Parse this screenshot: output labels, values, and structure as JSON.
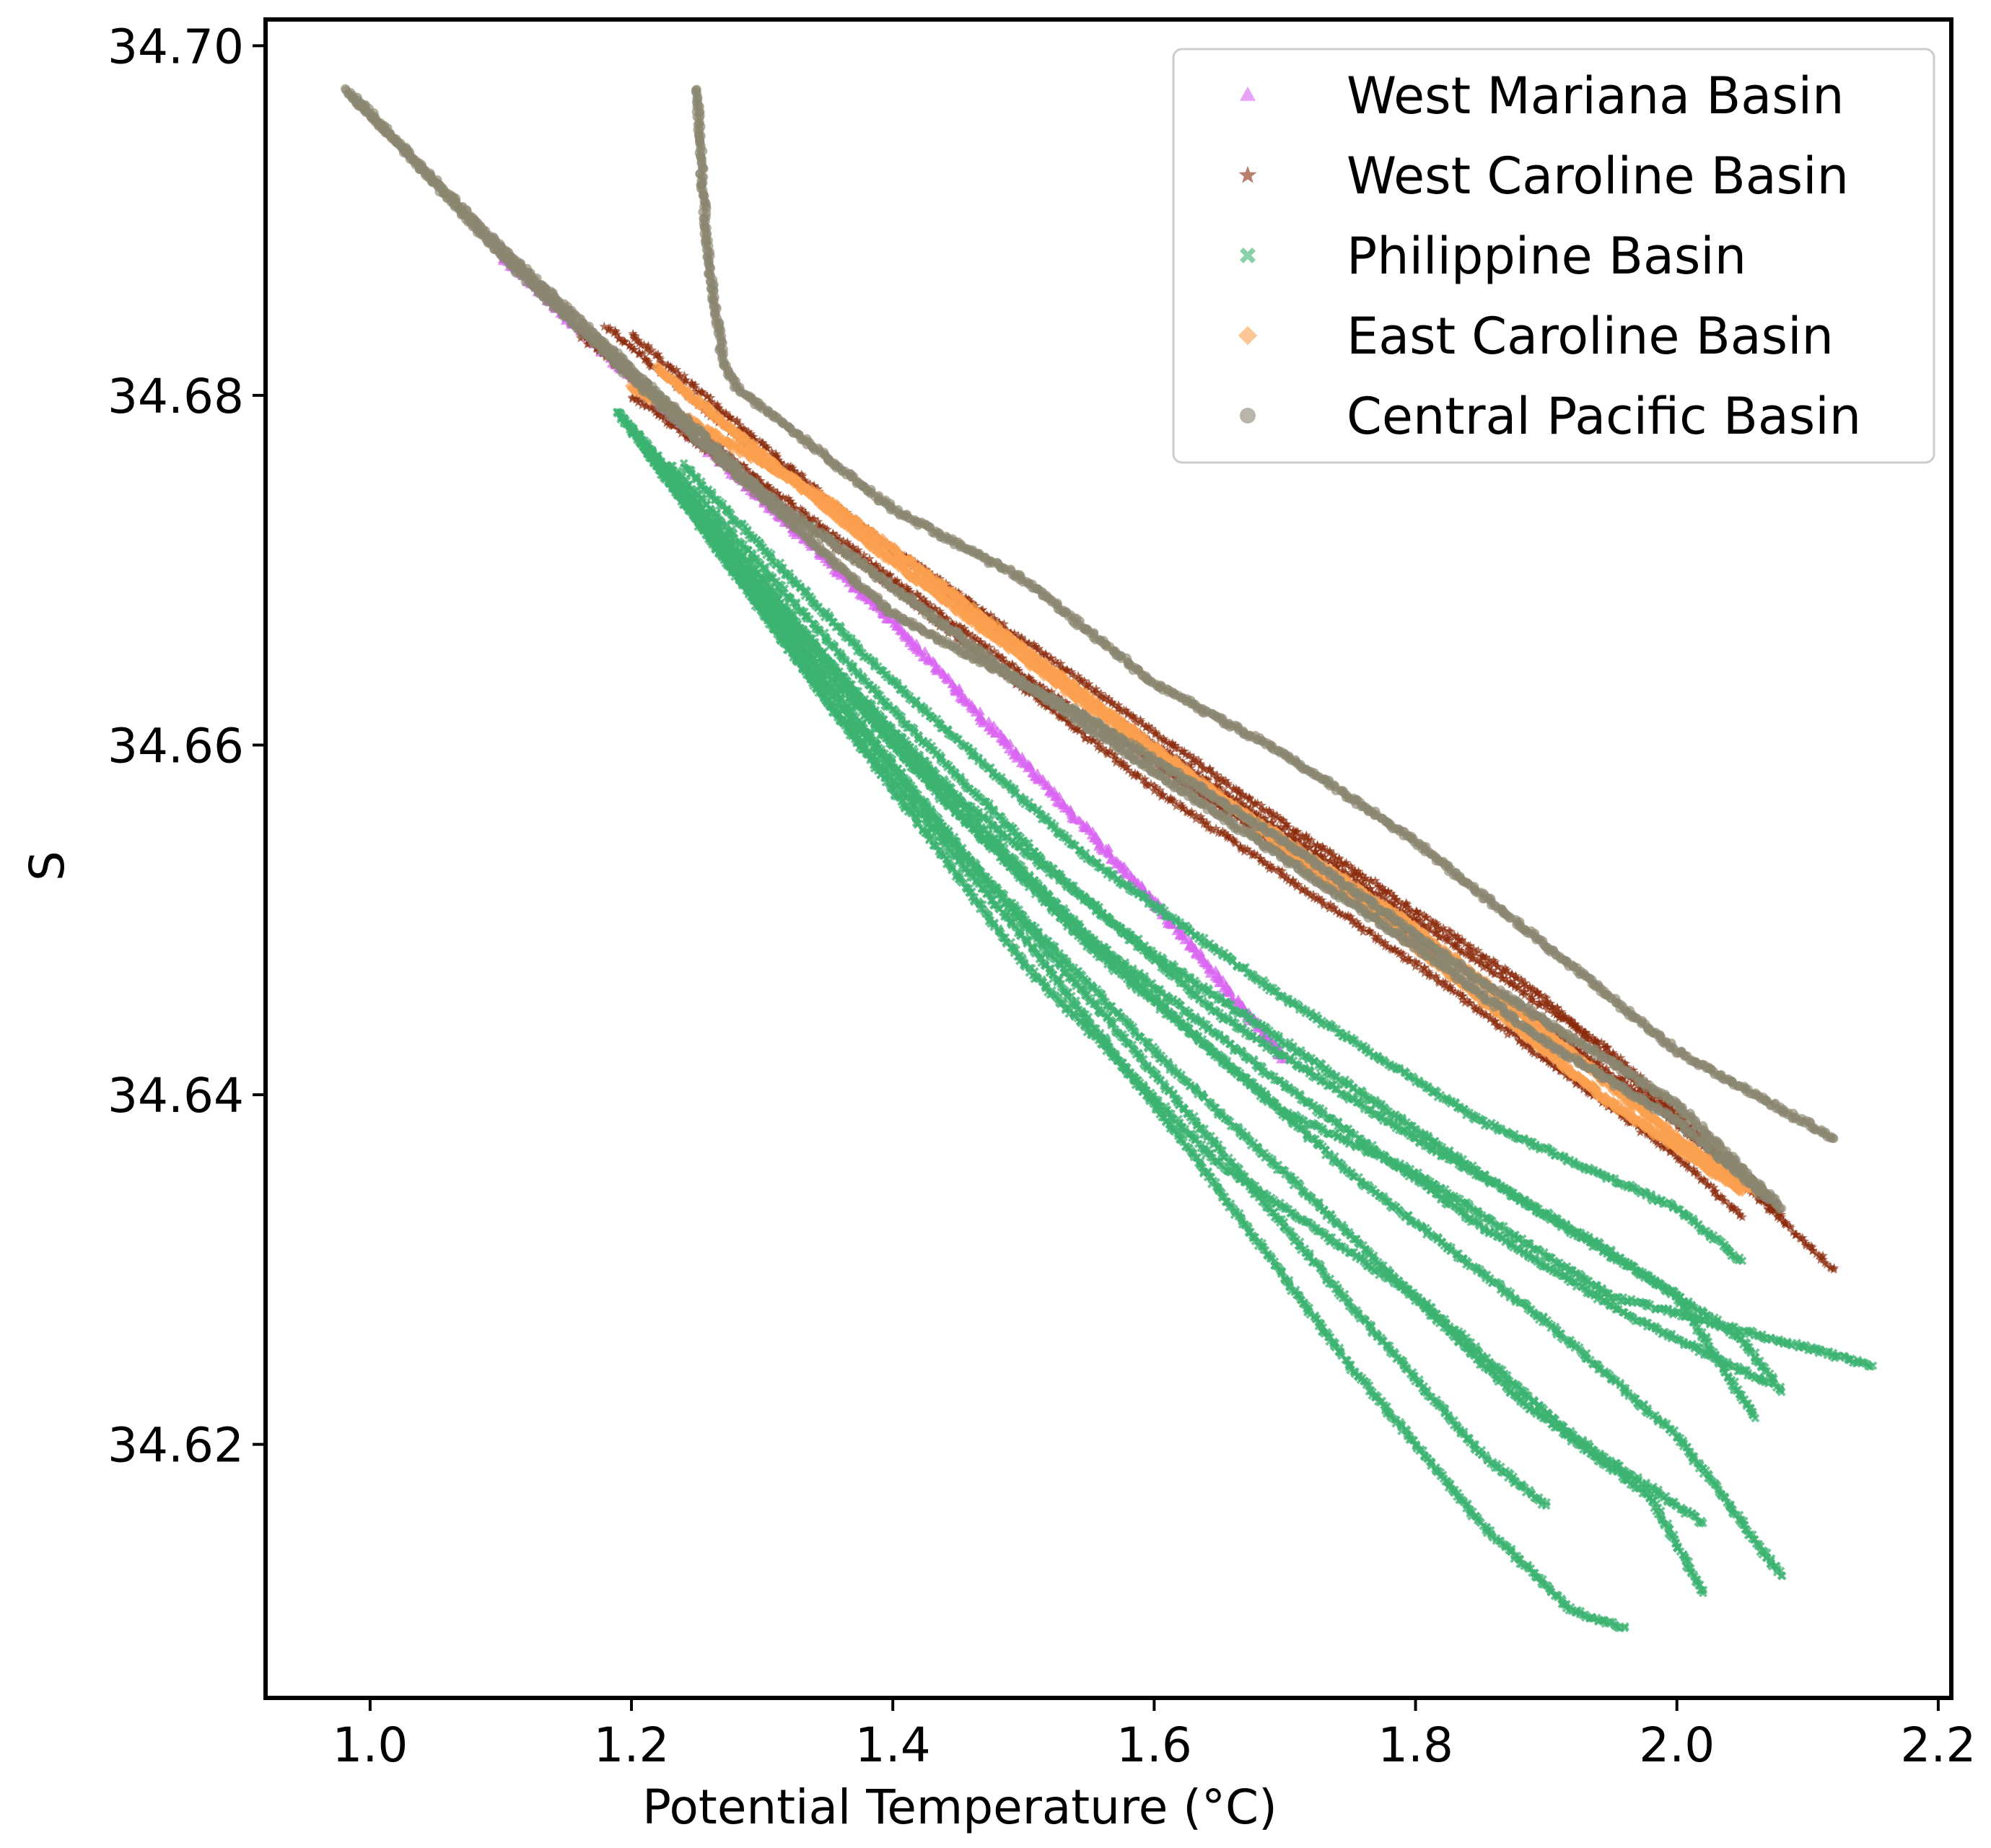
{
  "chart_data": {
    "type": "scatter",
    "title": "",
    "xlabel": "Potential Temperature (°C)",
    "ylabel": "S",
    "xlim": [
      0.92,
      2.21
    ],
    "ylim": [
      34.6055,
      34.7015
    ],
    "x_ticks": [
      1.0,
      1.2,
      1.4,
      1.6,
      1.8,
      2.0,
      2.2
    ],
    "x_tick_labels": [
      "1.0",
      "1.2",
      "1.4",
      "1.6",
      "1.8",
      "2.0",
      "2.2"
    ],
    "y_ticks": [
      34.62,
      34.64,
      34.66,
      34.68,
      34.7
    ],
    "y_tick_labels": [
      "34.62",
      "34.64",
      "34.66",
      "34.68",
      "34.70"
    ],
    "grid": false,
    "legend_position": "top-right",
    "series": [
      {
        "name": "West Mariana Basin",
        "marker": "triangle",
        "color": "#d966f2",
        "profiles": [
          [
            [
              1.1,
              34.688
            ],
            [
              1.2,
              34.681
            ],
            [
              1.3,
              34.674
            ],
            [
              1.4,
              34.667
            ],
            [
              1.5,
              34.659
            ],
            [
              1.6,
              34.651
            ],
            [
              1.7,
              34.642
            ]
          ]
        ]
      },
      {
        "name": "West Caroline Basin",
        "marker": "star",
        "color": "#8b2a0a",
        "profiles": [
          [
            [
              1.16,
              34.6835
            ],
            [
              1.3,
              34.675
            ],
            [
              1.5,
              34.664
            ],
            [
              1.7,
              34.654
            ],
            [
              1.9,
              34.644
            ],
            [
              2.05,
              34.6355
            ]
          ],
          [
            [
              1.18,
              34.684
            ],
            [
              1.3,
              34.6765
            ],
            [
              1.5,
              34.666
            ],
            [
              1.7,
              34.6555
            ],
            [
              1.9,
              34.6455
            ],
            [
              2.12,
              34.63
            ]
          ],
          [
            [
              1.2,
              34.6835
            ],
            [
              1.35,
              34.674
            ],
            [
              1.55,
              34.6625
            ],
            [
              1.75,
              34.6525
            ],
            [
              1.95,
              34.6425
            ],
            [
              2.08,
              34.633
            ]
          ],
          [
            [
              1.2,
              34.68
            ],
            [
              1.4,
              34.669
            ],
            [
              1.6,
              34.6575
            ],
            [
              1.8,
              34.6475
            ],
            [
              2.0,
              34.6365
            ],
            [
              2.05,
              34.633
            ]
          ]
        ]
      },
      {
        "name": "Philippine Basin",
        "marker": "x",
        "color": "#3cb371",
        "profiles": [
          [
            [
              1.19,
              34.679
            ],
            [
              1.3,
              34.6695
            ],
            [
              1.4,
              34.66
            ],
            [
              1.55,
              34.6485
            ],
            [
              1.7,
              34.639
            ],
            [
              1.8,
              34.6355
            ],
            [
              1.95,
              34.6285
            ],
            [
              2.15,
              34.6245
            ]
          ],
          [
            [
              1.19,
              34.679
            ],
            [
              1.3,
              34.669
            ],
            [
              1.42,
              34.659
            ],
            [
              1.55,
              34.649
            ],
            [
              1.7,
              34.6405
            ],
            [
              1.85,
              34.6325
            ],
            [
              1.96,
              34.6275
            ],
            [
              2.07,
              34.6235
            ]
          ],
          [
            [
              1.2,
              34.678
            ],
            [
              1.32,
              34.667
            ],
            [
              1.45,
              34.657
            ],
            [
              1.6,
              34.648
            ],
            [
              1.75,
              34.6405
            ],
            [
              1.88,
              34.634
            ],
            [
              2.0,
              34.6285
            ],
            [
              2.06,
              34.6215
            ]
          ],
          [
            [
              1.2,
              34.678
            ],
            [
              1.32,
              34.6665
            ],
            [
              1.45,
              34.656
            ],
            [
              1.6,
              34.6455
            ],
            [
              1.75,
              34.6355
            ],
            [
              1.9,
              34.627
            ],
            [
              2.0,
              34.6205
            ],
            [
              2.08,
              34.6125
            ]
          ],
          [
            [
              1.21,
              34.677
            ],
            [
              1.33,
              34.665
            ],
            [
              1.45,
              34.654
            ],
            [
              1.6,
              34.6425
            ],
            [
              1.75,
              34.632
            ],
            [
              1.88,
              34.6225
            ],
            [
              1.98,
              34.617
            ],
            [
              2.02,
              34.6115
            ]
          ],
          [
            [
              1.21,
              34.677
            ],
            [
              1.34,
              34.6645
            ],
            [
              1.48,
              34.6515
            ],
            [
              1.62,
              34.6395
            ],
            [
              1.75,
              34.628
            ],
            [
              1.85,
              34.6195
            ],
            [
              1.9,
              34.6165
            ]
          ],
          [
            [
              1.22,
              34.676
            ],
            [
              1.35,
              34.6625
            ],
            [
              1.5,
              34.649
            ],
            [
              1.62,
              34.6375
            ],
            [
              1.75,
              34.6245
            ],
            [
              1.85,
              34.6155
            ],
            [
              1.92,
              34.6105
            ],
            [
              1.96,
              34.6095
            ]
          ],
          [
            [
              1.22,
              34.676
            ],
            [
              1.36,
              34.6615
            ],
            [
              1.5,
              34.6475
            ],
            [
              1.65,
              34.636
            ],
            [
              1.8,
              34.6285
            ],
            [
              1.92,
              34.6205
            ],
            [
              2.02,
              34.6155
            ]
          ],
          [
            [
              1.23,
              34.676
            ],
            [
              1.38,
              34.6635
            ],
            [
              1.52,
              34.653
            ],
            [
              1.65,
              34.6445
            ],
            [
              1.8,
              34.6375
            ],
            [
              1.95,
              34.631
            ],
            [
              2.05,
              34.626
            ],
            [
              2.08,
              34.623
            ]
          ],
          [
            [
              1.24,
              34.676
            ],
            [
              1.38,
              34.665
            ],
            [
              1.55,
              34.6535
            ],
            [
              1.7,
              34.6455
            ],
            [
              1.85,
              34.6385
            ],
            [
              2.0,
              34.6335
            ],
            [
              2.05,
              34.6305
            ]
          ]
        ]
      },
      {
        "name": "East Caroline Basin",
        "marker": "diamond",
        "color": "#fba04e",
        "profiles": [
          [
            [
              1.2,
              34.6805
            ],
            [
              1.35,
              34.674
            ],
            [
              1.5,
              34.6655
            ],
            [
              1.65,
              34.657
            ],
            [
              1.8,
              34.6485
            ],
            [
              1.95,
              34.6395
            ],
            [
              2.05,
              34.6345
            ]
          ],
          [
            [
              1.22,
              34.6815
            ],
            [
              1.4,
              34.6705
            ],
            [
              1.6,
              34.6595
            ],
            [
              1.8,
              34.6495
            ],
            [
              2.0,
              34.6375
            ],
            [
              2.06,
              34.6345
            ]
          ]
        ]
      },
      {
        "name": "Central Pacific Basin",
        "marker": "circle",
        "color": "#8b8670",
        "profiles": [
          [
            [
              0.98,
              34.6975
            ],
            [
              1.1,
              34.6885
            ],
            [
              1.2,
              34.6815
            ],
            [
              1.3,
              34.6745
            ],
            [
              1.4,
              34.669
            ],
            [
              1.5,
              34.6635
            ],
            [
              1.6,
              34.6585
            ],
            [
              1.7,
              34.6535
            ],
            [
              1.8,
              34.6485
            ],
            [
              1.9,
              34.643
            ],
            [
              2.0,
              34.6385
            ],
            [
              2.07,
              34.634
            ]
          ],
          [
            [
              0.99,
              34.697
            ],
            [
              1.1,
              34.688
            ],
            [
              1.25,
              34.6775
            ],
            [
              1.4,
              34.6675
            ],
            [
              1.55,
              34.6615
            ],
            [
              1.7,
              34.6545
            ],
            [
              1.85,
              34.6465
            ],
            [
              2.0,
              34.6395
            ],
            [
              2.08,
              34.6335
            ]
          ],
          [
            [
              1.25,
              34.6975
            ],
            [
              1.255,
              34.6915
            ],
            [
              1.26,
              34.687
            ],
            [
              1.27,
              34.682
            ],
            [
              1.28,
              34.6805
            ],
            [
              1.4,
              34.6735
            ],
            [
              1.5,
              34.6695
            ],
            [
              1.6,
              34.6635
            ],
            [
              1.7,
              34.6595
            ],
            [
              1.8,
              34.6545
            ],
            [
              1.9,
              34.6485
            ],
            [
              2.0,
              34.6425
            ],
            [
              2.12,
              34.6375
            ]
          ]
        ]
      }
    ]
  }
}
